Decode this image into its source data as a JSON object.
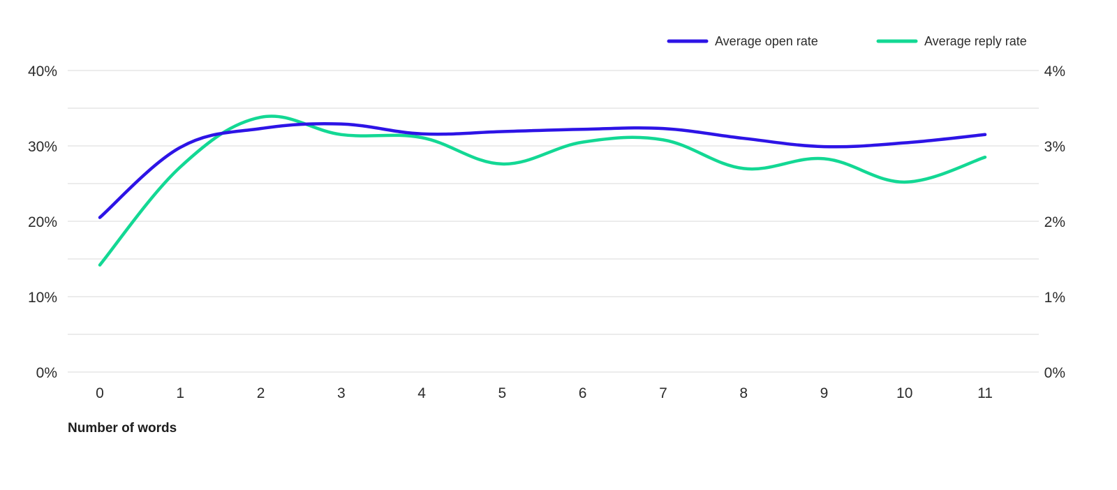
{
  "chart_data": {
    "type": "line",
    "xlabel": "Number of words",
    "x": [
      0,
      1,
      2,
      3,
      4,
      5,
      6,
      7,
      8,
      9,
      10,
      11
    ],
    "x_ticks": [
      "0",
      "1",
      "2",
      "3",
      "4",
      "5",
      "6",
      "7",
      "8",
      "9",
      "10",
      "11"
    ],
    "y_left": {
      "range": [
        0,
        40
      ],
      "ticks": [
        0,
        10,
        20,
        30,
        40
      ],
      "tick_labels": [
        "0%",
        "10%",
        "20%",
        "30%",
        "40%"
      ]
    },
    "y_right": {
      "range": [
        0,
        4
      ],
      "ticks": [
        0,
        1,
        2,
        3,
        4
      ],
      "tick_labels": [
        "0%",
        "1%",
        "2%",
        "3%",
        "4%"
      ]
    },
    "grid": true,
    "legend_position": "top-right",
    "series": [
      {
        "name": "Average open rate",
        "axis": "left",
        "color": "#2d14e6",
        "values": [
          20.5,
          29.8,
          32.3,
          32.9,
          31.6,
          31.9,
          32.2,
          32.3,
          31.0,
          29.9,
          30.4,
          31.5
        ]
      },
      {
        "name": "Average reply rate",
        "axis": "right",
        "color": "#13d894",
        "values": [
          1.42,
          2.72,
          3.38,
          3.15,
          3.11,
          2.76,
          3.05,
          3.08,
          2.7,
          2.83,
          2.52,
          2.85
        ]
      }
    ]
  }
}
